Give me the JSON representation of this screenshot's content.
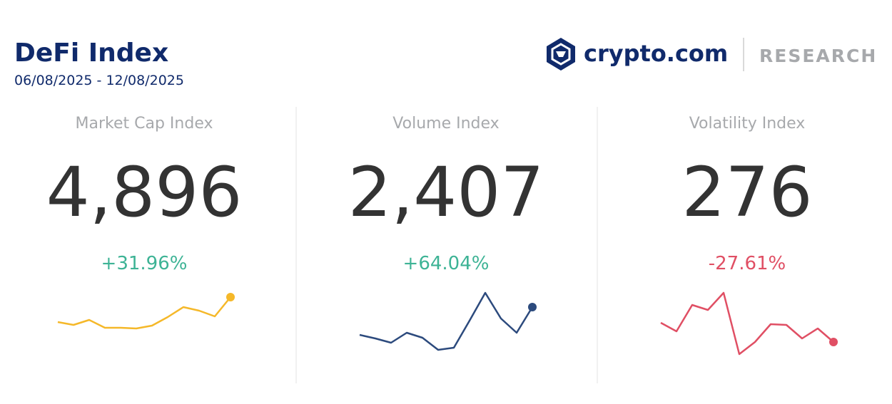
{
  "header": {
    "title": "DeFi Index",
    "date_range": "06/08/2025 - 12/08/2025",
    "brand": "crypto.com",
    "section": "RESEARCH"
  },
  "chart_data": [
    {
      "type": "line",
      "title": "Market Cap Index",
      "headline": "4,896",
      "change": "+31.96%",
      "change_color": "#3db395",
      "color": "#f5b829",
      "categories": [
        null,
        null,
        null,
        null,
        null,
        null,
        null,
        null,
        null,
        null,
        null,
        null
      ],
      "values": [
        18,
        14,
        21,
        10,
        10,
        9,
        13,
        25,
        39,
        34,
        26,
        53
      ],
      "ylim": [
        -40,
        70
      ]
    },
    {
      "type": "line",
      "title": "Volume Index",
      "headline": "2,407",
      "change": "+64.04%",
      "change_color": "#3db395",
      "color": "#2c4a7d",
      "categories": [
        null,
        null,
        null,
        null,
        null,
        null,
        null,
        null,
        null,
        null,
        null,
        null
      ],
      "values": [
        30,
        25,
        19,
        33,
        26,
        9,
        12,
        50,
        89,
        53,
        33,
        69
      ],
      "ylim": [
        -10,
        100
      ]
    },
    {
      "type": "line",
      "title": "Volatility Index",
      "headline": "276",
      "change": "-27.61%",
      "change_color": "#e04f64",
      "color": "#e04f64",
      "categories": [
        null,
        null,
        null,
        null,
        null,
        null,
        null,
        null,
        null,
        null,
        null,
        null
      ],
      "values": [
        57,
        45,
        82,
        75,
        99,
        13,
        30,
        55,
        54,
        35,
        49,
        30
      ],
      "ylim": [
        0,
        110
      ]
    }
  ]
}
